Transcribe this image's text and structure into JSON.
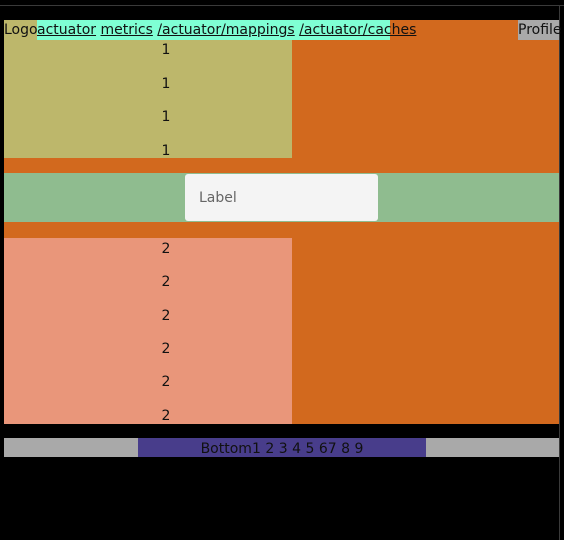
{
  "header": {
    "logo": "Logo",
    "nav_links": [
      "actuator",
      "metrics",
      "/actuator/mappings",
      "/actuator/caches"
    ],
    "profile": "Profile"
  },
  "list_1": {
    "items": [
      "1",
      "1",
      "1",
      "1"
    ]
  },
  "form": {
    "label_placeholder": "Label"
  },
  "list_2": {
    "items": [
      "2",
      "2",
      "2",
      "2",
      "2",
      "2"
    ]
  },
  "footer": {
    "label": "Bottom",
    "pages": [
      "1",
      "2",
      "3",
      "4",
      "5",
      "6",
      "7",
      "8",
      "9"
    ]
  },
  "colors": {
    "page_background": "#d2691e",
    "logo_background": "#bdb76b",
    "nav_background": "#7fffd4",
    "profile_background": "#a9a9a9",
    "list_1_background": "#bdb76b",
    "label_band_background": "#8fbc8f",
    "list_2_background": "#e9967a",
    "footer_background": "#a9a9a9",
    "pager_background": "#483d8b"
  }
}
